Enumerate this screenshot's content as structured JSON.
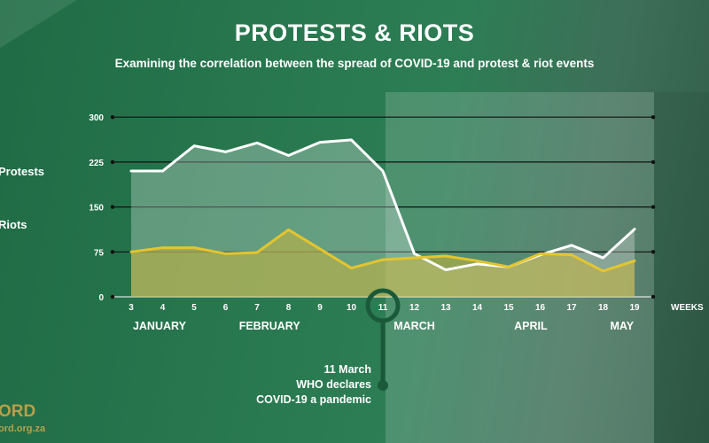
{
  "header": {
    "title": "PROTESTS & RIOTS",
    "subtitle": "Examining the correlation between the spread of COVID-19 and protest & riot events"
  },
  "legend": {
    "protests_label": "Protests",
    "riots_label": "Riots"
  },
  "brand": {
    "name_fragment": "ORD",
    "url_fragment": "ord.org.za"
  },
  "colors": {
    "protests": "#ffffff",
    "riots": "#e3c52f",
    "riots_fill": "#c9b43c",
    "background": "#2a7a51"
  },
  "chart_data": {
    "type": "area",
    "title": "PROTESTS & RIOTS",
    "subtitle": "Examining the correlation between the spread of COVID-19 and protest & riot events",
    "xlabel": "WEEKS",
    "x": [
      3,
      4,
      5,
      6,
      7,
      8,
      9,
      10,
      11,
      12,
      13,
      14,
      15,
      16,
      17,
      18,
      19
    ],
    "x_tick_labels": [
      "3",
      "4",
      "5",
      "6",
      "7",
      "8",
      "9",
      "10",
      "11",
      "12",
      "13",
      "14",
      "15",
      "16",
      "17",
      "18",
      "19"
    ],
    "ylim": [
      0,
      300
    ],
    "y_ticks": [
      0,
      75,
      150,
      225,
      300
    ],
    "y_tick_labels": [
      "0",
      "75",
      "150",
      "225",
      "300"
    ],
    "grid": true,
    "series": [
      {
        "name": "Protests",
        "values": [
          210,
          210,
          252,
          242,
          257,
          236,
          258,
          262,
          210,
          72,
          45,
          55,
          50,
          70,
          86,
          65,
          113
        ]
      },
      {
        "name": "Riots",
        "values": [
          75,
          82,
          82,
          72,
          74,
          112,
          80,
          48,
          62,
          65,
          68,
          60,
          50,
          72,
          70,
          43,
          60
        ]
      }
    ],
    "months": [
      {
        "label": "JANUARY",
        "week": 3.9
      },
      {
        "label": "FEBRUARY",
        "week": 7.4
      },
      {
        "label": "MARCH",
        "week": 12.0
      },
      {
        "label": "APRIL",
        "week": 15.7
      },
      {
        "label": "MAY",
        "week": 18.6
      }
    ],
    "highlight_from_week": 11,
    "annotation": {
      "week": 11,
      "lines": [
        "11 March",
        "WHO declares",
        "COVID-19 a pandemic"
      ]
    }
  }
}
